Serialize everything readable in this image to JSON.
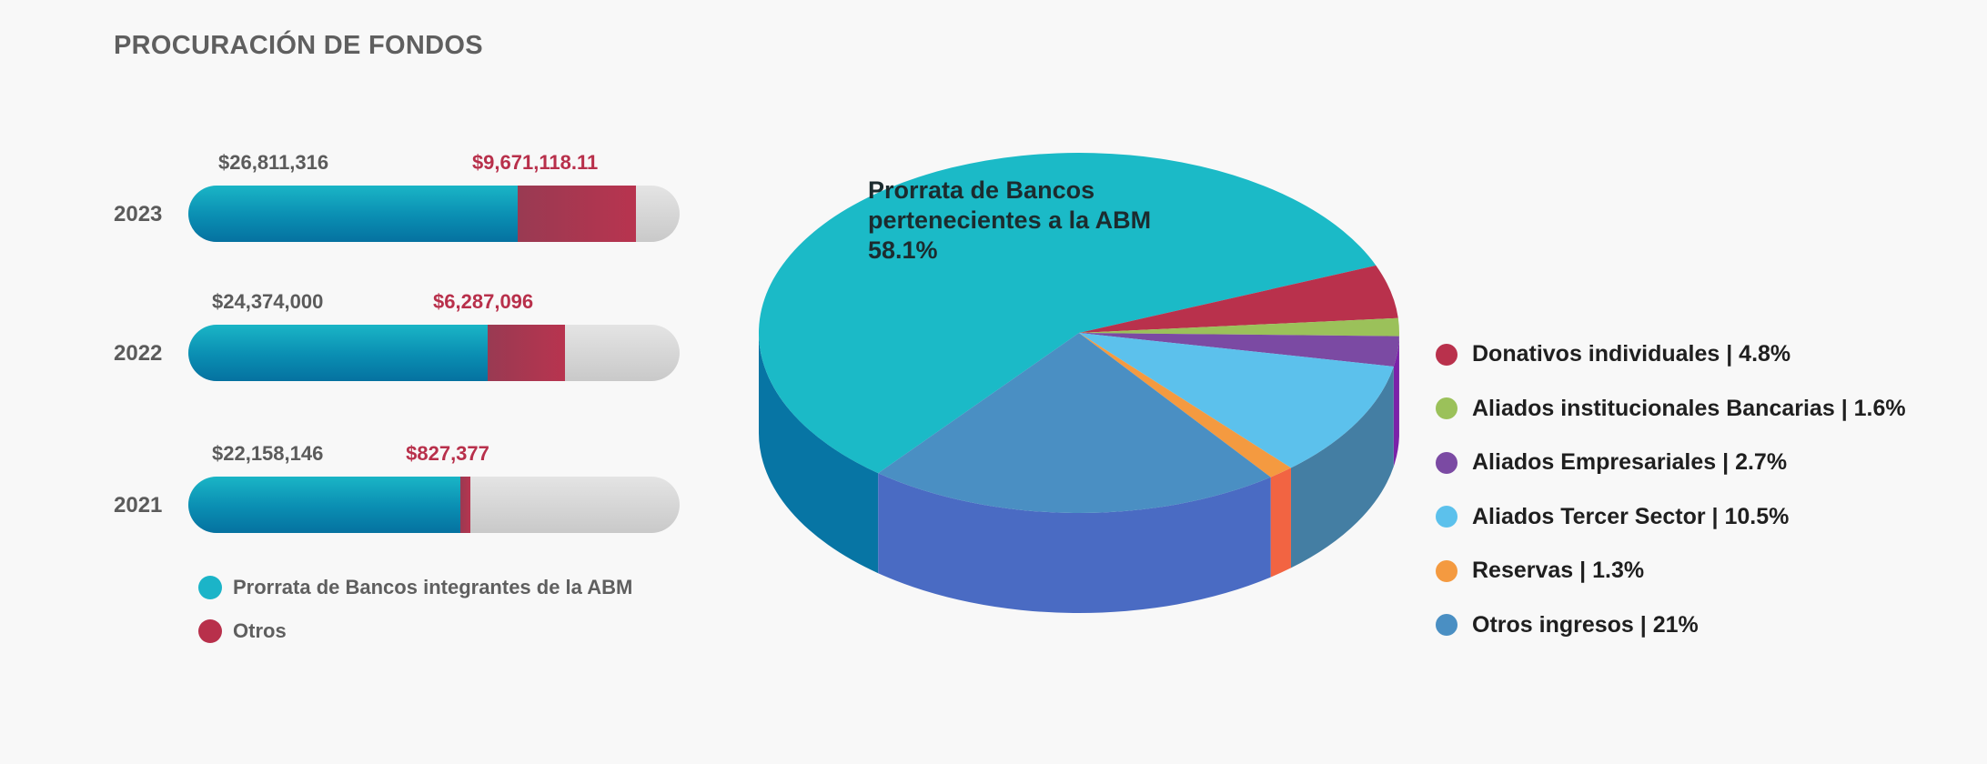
{
  "title": "PROCURACIÓN DE FONDOS",
  "chart_data": [
    {
      "type": "bar",
      "orientation": "horizontal",
      "stacked": true,
      "categories": [
        "2023",
        "2022",
        "2021"
      ],
      "series": [
        {
          "name": "Prorrata de Bancos integrantes de la ABM",
          "values": [
            26811316,
            24374000,
            22158146
          ],
          "labels": [
            "$26,811,316",
            "$24,374,000",
            "$22,158,146"
          ],
          "color": "#0d8fb4"
        },
        {
          "name": "Otros",
          "values": [
            9671118.11,
            6287096,
            827377
          ],
          "labels": [
            "$9,671,118.11",
            "$6,287,096",
            "$827,377"
          ],
          "color": "#b8344f"
        }
      ],
      "xlim": [
        0,
        40000000
      ],
      "legend": "bottom"
    },
    {
      "type": "pie",
      "style": "3d",
      "slices": [
        {
          "label": "Prorrata de Bancos pertenecientes a la ABM",
          "value": 58.1,
          "color": "#1bbac7",
          "side": "#0775a4"
        },
        {
          "label": "Donativos individuales",
          "value": 4.8,
          "color": "#b9314c",
          "side": "#b9314c"
        },
        {
          "label": "Aliados institucionales Bancarias",
          "value": 1.6,
          "color": "#9bc15a",
          "side": "#8eb84e"
        },
        {
          "label": "Aliados Empresariales",
          "value": 2.7,
          "color": "#7b4aa3",
          "side": "#7b22a8"
        },
        {
          "label": "Aliados Tercer Sector",
          "value": 10.5,
          "color": "#5cc1ec",
          "side": "#447ea3"
        },
        {
          "label": "Reservas",
          "value": 1.3,
          "color": "#f49a40",
          "side": "#f26442"
        },
        {
          "label": "Otros ingresos",
          "value": 21,
          "color": "#4a8fc3",
          "side": "#4a6bc3"
        }
      ],
      "annotation": {
        "line1": "Prorrata de Bancos",
        "line2": "pertenecientes a la ABM",
        "line3": "58.1%"
      },
      "legend_entries": [
        {
          "text": "Donativos individuales | 4.8%",
          "color": "#b9314c"
        },
        {
          "text": "Aliados institucionales Bancarias | 1.6%",
          "color": "#9bc15a"
        },
        {
          "text": "Aliados Empresariales | 2.7%",
          "color": "#7b4aa3"
        },
        {
          "text": "Aliados Tercer Sector | 10.5%",
          "color": "#5cc1ec"
        },
        {
          "text": "Reservas | 1.3%",
          "color": "#f49a40"
        },
        {
          "text": "Otros ingresos | 21%",
          "color": "#4a8fc3"
        }
      ],
      "legend": "right"
    }
  ]
}
